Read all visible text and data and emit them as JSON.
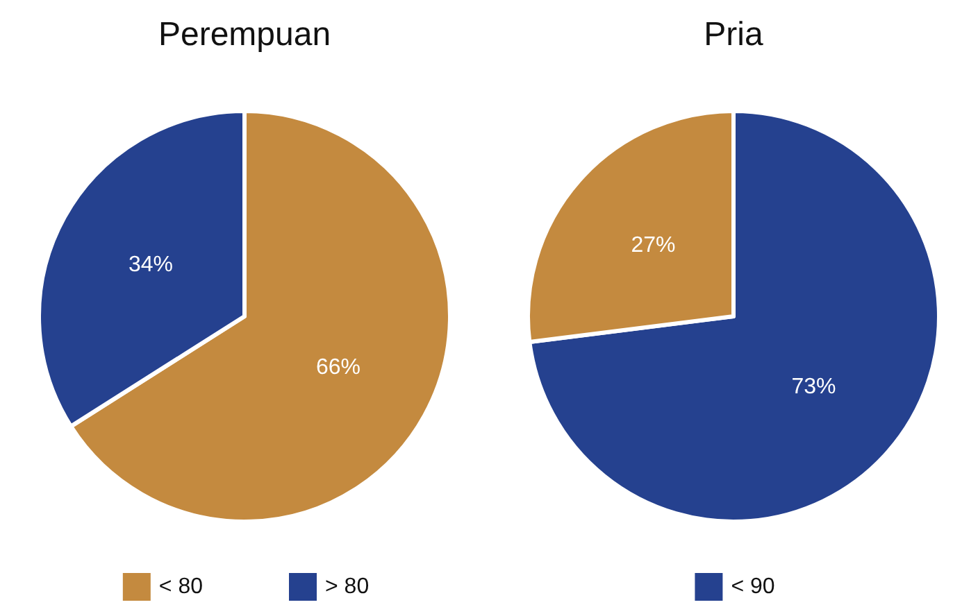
{
  "chart_data": [
    {
      "type": "pie",
      "title": "Perempuan",
      "categories": [
        "< 80",
        "> 80"
      ],
      "values": [
        66,
        34
      ],
      "value_labels": [
        "66%",
        "34%"
      ],
      "colors": [
        "#c48a3f",
        "#25418f"
      ],
      "legend": "bottom"
    },
    {
      "type": "pie",
      "title": "Pria",
      "categories": [
        "< 90",
        null
      ],
      "values": [
        73,
        27
      ],
      "value_labels": [
        "73%",
        "27%"
      ],
      "colors": [
        "#25418f",
        "#c48a3f"
      ],
      "legend": "bottom"
    }
  ]
}
